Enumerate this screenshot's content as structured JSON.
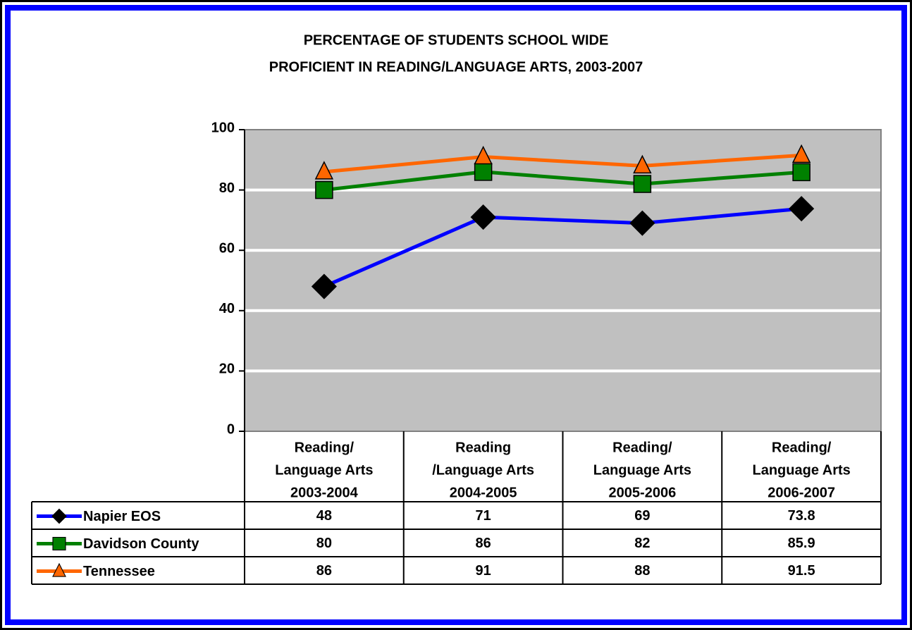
{
  "chart_data": {
    "type": "line",
    "title": [
      "PERCENTAGE OF STUDENTS SCHOOL WIDE",
      "PROFICIENT IN READING/LANGUAGE ARTS, 2003-2007"
    ],
    "categories": [
      [
        "Reading/",
        "Language Arts",
        "2003-2004"
      ],
      [
        "Reading",
        "/Language Arts",
        "2004-2005"
      ],
      [
        "Reading/",
        "Language Arts",
        "2005-2006"
      ],
      [
        "Reading/",
        "Language Arts",
        "2006-2007"
      ]
    ],
    "series": [
      {
        "name": "Napier EOS",
        "color": "#0000ff",
        "marker": "diamond",
        "marker_color": "#000000",
        "values": [
          48,
          71,
          69,
          73.8
        ]
      },
      {
        "name": "Davidson County",
        "color": "#008000",
        "marker": "square",
        "marker_color": "#008000",
        "values": [
          80,
          86,
          82,
          85.9
        ]
      },
      {
        "name": "Tennessee",
        "color": "#ff6600",
        "marker": "triangle",
        "marker_color": "#ff6600",
        "values": [
          86,
          91,
          88,
          91.5
        ]
      }
    ],
    "ylim": [
      0,
      100
    ],
    "yticks": [
      0,
      20,
      40,
      60,
      80,
      100
    ],
    "grid": true,
    "plot_background": "#c0c0c0",
    "data_table": true
  }
}
